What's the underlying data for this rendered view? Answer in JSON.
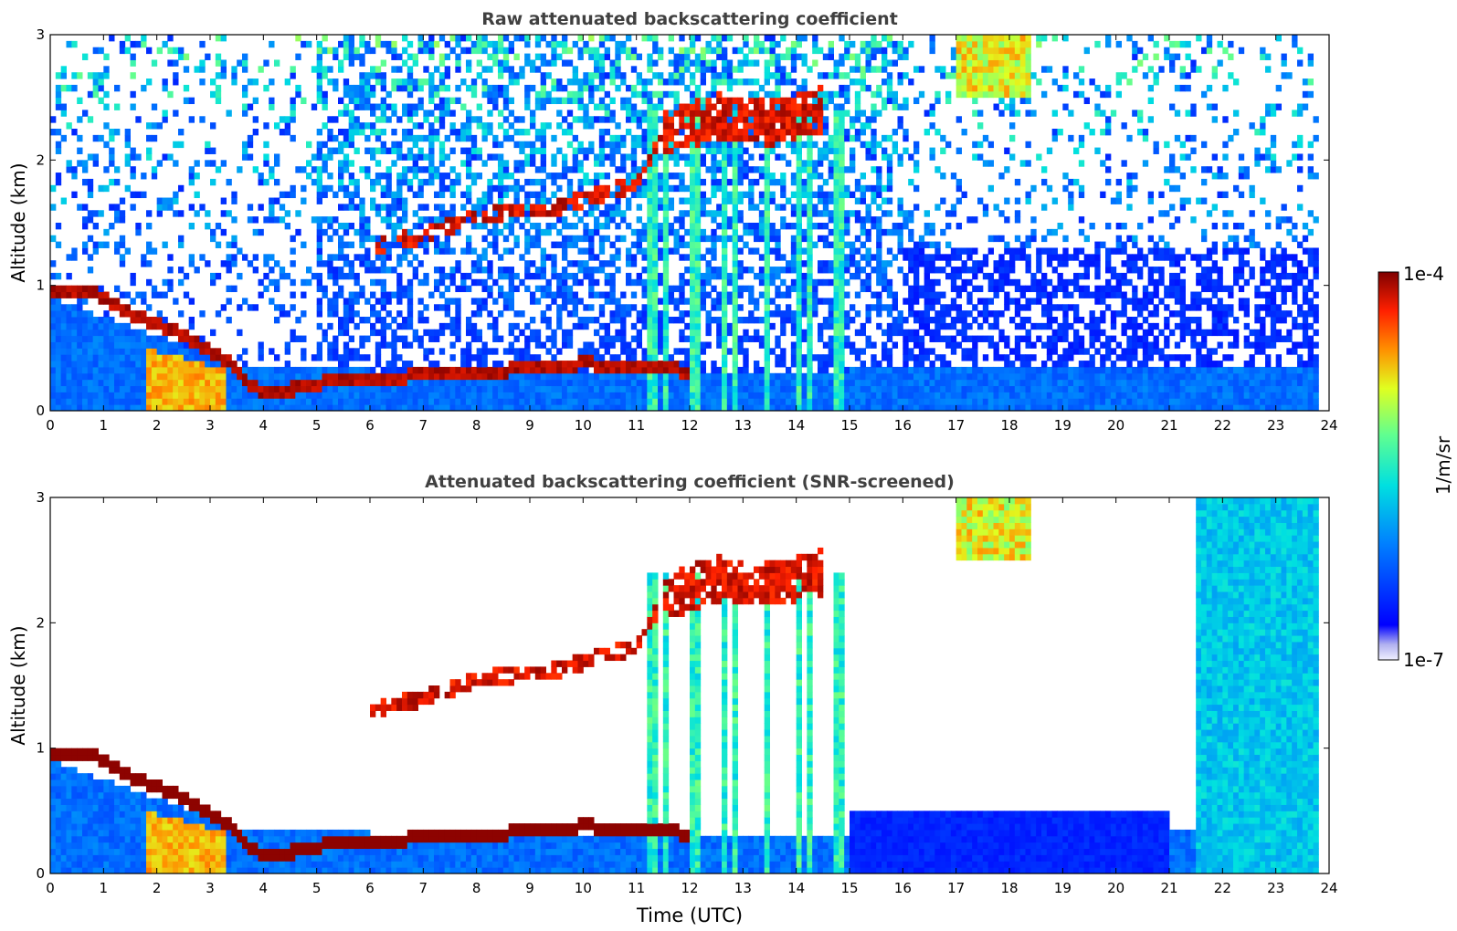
{
  "chart_data": [
    {
      "type": "heatmap",
      "title": "Raw attenuated backscattering coefficient",
      "xlabel": "",
      "ylabel": "Altitude (km)",
      "xlim": [
        0,
        24
      ],
      "ylim": [
        0,
        3
      ],
      "x_ticks": [
        "0",
        "1",
        "2",
        "3",
        "4",
        "5",
        "6",
        "7",
        "8",
        "9",
        "10",
        "11",
        "12",
        "13",
        "14",
        "15",
        "16",
        "17",
        "18",
        "19",
        "20",
        "21",
        "22",
        "23",
        "24"
      ],
      "y_ticks": [
        "0",
        "1",
        "2",
        "3"
      ],
      "features": {
        "cloud_layer_base_km": [
          {
            "t": 0.0,
            "z": 0.97
          },
          {
            "t": 0.8,
            "z": 0.95
          },
          {
            "t": 1.5,
            "z": 0.78
          },
          {
            "t": 2.5,
            "z": 0.6
          },
          {
            "t": 3.3,
            "z": 0.4
          },
          {
            "t": 4.0,
            "z": 0.12
          },
          {
            "t": 5.0,
            "z": 0.22
          },
          {
            "t": 6.0,
            "z": 0.26
          },
          {
            "t": 8.0,
            "z": 0.3
          },
          {
            "t": 10.0,
            "z": 0.38
          },
          {
            "t": 12.0,
            "z": 0.32
          }
        ],
        "elevated_layer_km": [
          {
            "t": 6.0,
            "z": 1.3
          },
          {
            "t": 7.0,
            "z": 1.4
          },
          {
            "t": 8.0,
            "z": 1.55
          },
          {
            "t": 9.5,
            "z": 1.62
          },
          {
            "t": 10.5,
            "z": 1.75
          },
          {
            "t": 11.0,
            "z": 1.8
          },
          {
            "t": 11.5,
            "z": 2.2
          },
          {
            "t": 12.5,
            "z": 2.35
          },
          {
            "t": 13.5,
            "z": 2.3
          },
          {
            "t": 14.5,
            "z": 2.4
          }
        ]
      }
    },
    {
      "type": "heatmap",
      "title": "Attenuated backscattering coefficient (SNR-screened)",
      "xlabel": "Time (UTC)",
      "ylabel": "Altitude (km)",
      "xlim": [
        0,
        24
      ],
      "ylim": [
        0,
        3
      ],
      "x_ticks": [
        "0",
        "1",
        "2",
        "3",
        "4",
        "5",
        "6",
        "7",
        "8",
        "9",
        "10",
        "11",
        "12",
        "13",
        "14",
        "15",
        "16",
        "17",
        "18",
        "19",
        "20",
        "21",
        "22",
        "23",
        "24"
      ],
      "y_ticks": [
        "0",
        "1",
        "2",
        "3"
      ]
    }
  ],
  "colorbar": {
    "label": "1/m/sr",
    "max_label": "1e-4",
    "min_label": "1e-7",
    "range": [
      1e-07,
      0.0001
    ],
    "scale": "log",
    "colormap": "jet"
  }
}
